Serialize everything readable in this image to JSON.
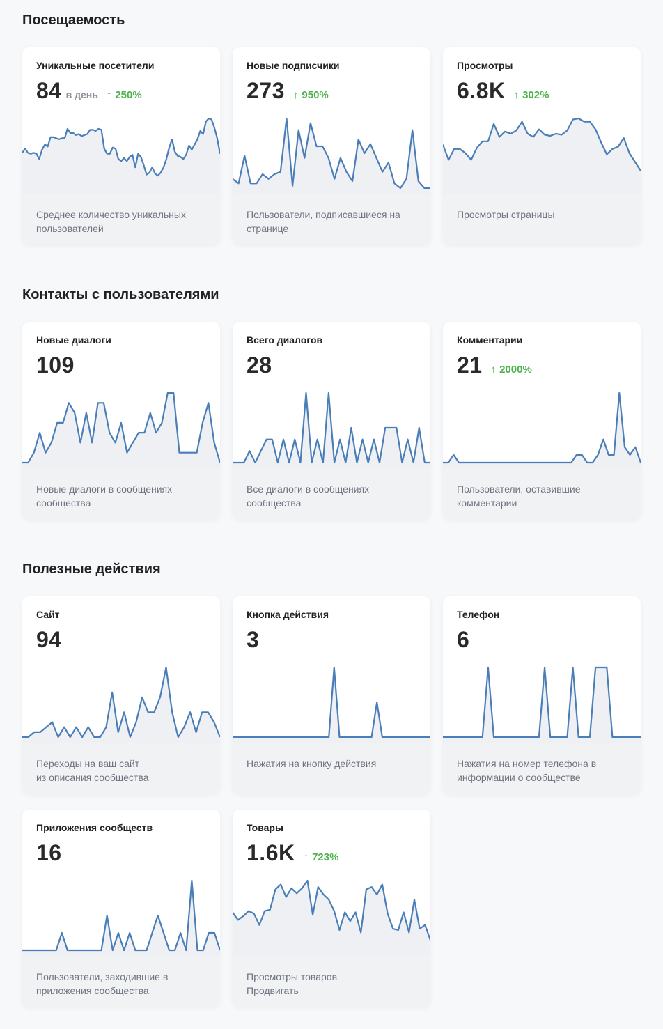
{
  "sections": [
    {
      "title": "Посещаемость",
      "cards": [
        {
          "title": "Уникальные посетители",
          "value": "84",
          "unit": "в день",
          "growth": "250%",
          "desc": [
            "Среднее количество уникальных",
            "пользователей"
          ],
          "series": [
            34,
            38,
            34,
            33,
            34,
            33,
            28,
            37,
            42,
            40,
            49,
            49,
            48,
            47,
            48,
            48,
            57,
            53,
            53,
            51,
            52,
            50,
            51,
            52,
            56,
            56,
            55,
            57,
            56,
            38,
            33,
            33,
            39,
            38,
            28,
            26,
            29,
            26,
            30,
            32,
            20,
            33,
            30,
            22,
            13,
            15,
            20,
            14,
            12,
            15,
            20,
            28,
            39,
            47,
            35,
            31,
            30,
            28,
            32,
            41,
            37,
            42,
            47,
            55,
            52,
            64,
            67,
            66,
            58,
            48,
            33
          ]
        },
        {
          "title": "Новые подписчики",
          "value": "273",
          "growth": "950%",
          "desc": [
            "Пользователи, подписавшиеся на",
            "странице"
          ],
          "series": [
            4,
            2,
            14,
            2,
            2,
            6,
            4,
            6,
            7,
            30,
            1,
            25,
            13,
            28,
            18,
            18,
            13,
            4,
            13,
            7,
            3,
            21,
            15,
            19,
            13,
            7,
            11,
            2,
            0,
            4,
            25,
            3,
            0,
            0
          ]
        },
        {
          "title": "Просмотры",
          "value": "6.8K",
          "growth": "302%",
          "desc": [
            "Просмотры страницы"
          ],
          "series": [
            40,
            26,
            36,
            36,
            32,
            26,
            37,
            43,
            43,
            59,
            47,
            52,
            50,
            53,
            61,
            50,
            47,
            54,
            49,
            48,
            50,
            49,
            53,
            63,
            64,
            61,
            61,
            54,
            42,
            31,
            36,
            38,
            46,
            32,
            24,
            16
          ]
        }
      ]
    },
    {
      "title": "Контакты с пользователями",
      "cards": [
        {
          "title": "Новые диалоги",
          "value": "109",
          "desc": [
            "Новые диалоги в сообщениях",
            "сообщества"
          ],
          "series": [
            0,
            0,
            1,
            3,
            1,
            2,
            4,
            4,
            6,
            5,
            2,
            5,
            2,
            6,
            6,
            3,
            2,
            4,
            1,
            2,
            3,
            3,
            5,
            3,
            4,
            7,
            7,
            1,
            1,
            1,
            1,
            4,
            6,
            2,
            0
          ]
        },
        {
          "title": "Всего диалогов",
          "value": "28",
          "desc": [
            "Все диалоги в сообщениях",
            "сообщества"
          ],
          "series": [
            0,
            0,
            0,
            1,
            0,
            1,
            2,
            2,
            0,
            2,
            0,
            2,
            0,
            6,
            0,
            2,
            0,
            6,
            0,
            2,
            0,
            3,
            0,
            2,
            0,
            2,
            0,
            3,
            3,
            3,
            0,
            2,
            0,
            3,
            0,
            0
          ]
        },
        {
          "title": "Комментарии",
          "value": "21",
          "growth": "2000%",
          "desc": [
            "Пользователи, оставившие",
            "комментарии"
          ],
          "series": [
            0,
            0,
            1,
            0,
            0,
            0,
            0,
            0,
            0,
            0,
            0,
            0,
            0,
            0,
            0,
            0,
            0,
            0,
            0,
            0,
            0,
            0,
            0,
            0,
            0,
            1,
            1,
            0,
            0,
            1,
            3,
            1,
            1,
            9,
            2,
            1,
            2,
            0
          ]
        }
      ]
    },
    {
      "title": "Полезные действия",
      "cards": [
        {
          "title": "Сайт",
          "value": "94",
          "desc": [
            "Переходы на ваш сайт",
            "из описания сообщества"
          ],
          "series": [
            0,
            0,
            1,
            1,
            2,
            3,
            0,
            2,
            0,
            2,
            0,
            2,
            0,
            0,
            2,
            9,
            1,
            5,
            0,
            3,
            8,
            5,
            5,
            8,
            14,
            5,
            0,
            2,
            5,
            1,
            5,
            5,
            3,
            0
          ]
        },
        {
          "title": "Кнопка действия",
          "value": "3",
          "desc": [
            "Нажатия на кнопку действия"
          ],
          "series": [
            0,
            0,
            0,
            0,
            0,
            0,
            0,
            0,
            0,
            0,
            0,
            0,
            0,
            0,
            0,
            0,
            0,
            0,
            0,
            2,
            0,
            0,
            0,
            0,
            0,
            0,
            0,
            1,
            0,
            0,
            0,
            0,
            0,
            0,
            0,
            0,
            0,
            0
          ]
        },
        {
          "title": "Телефон",
          "value": "6",
          "desc": [
            "Нажатия на номер телефона в",
            "информации о сообществе"
          ],
          "series": [
            0,
            0,
            0,
            0,
            0,
            0,
            0,
            0,
            1,
            0,
            0,
            0,
            0,
            0,
            0,
            0,
            0,
            0,
            1,
            0,
            0,
            0,
            0,
            1,
            0,
            0,
            0,
            1,
            1,
            1,
            0,
            0,
            0,
            0,
            0,
            0
          ]
        }
      ]
    },
    {
      "title": "",
      "cards": [
        {
          "title": "Приложения сообществ",
          "value": "16",
          "desc": [
            "Пользователи, заходившие в",
            "приложения сообщества"
          ],
          "series": [
            0,
            0,
            0,
            0,
            0,
            0,
            0,
            1,
            0,
            0,
            0,
            0,
            0,
            0,
            0,
            2,
            0,
            1,
            0,
            1,
            0,
            0,
            0,
            1,
            2,
            1,
            0,
            0,
            1,
            0,
            4,
            0,
            0,
            1,
            1,
            0
          ]
        },
        {
          "title": "Товары",
          "value": "1.6K",
          "growth": "723%",
          "desc": [
            "Просмотры товаров",
            "Продвигать"
          ],
          "series": [
            30,
            24,
            27,
            31,
            29,
            20,
            31,
            32,
            48,
            52,
            42,
            49,
            45,
            49,
            55,
            28,
            50,
            44,
            40,
            31,
            16,
            30,
            23,
            30,
            14,
            48,
            50,
            44,
            52,
            29,
            17,
            16,
            30,
            14,
            40,
            17,
            20,
            8
          ]
        }
      ]
    }
  ],
  "colors": {
    "line": "#4a7eb8",
    "fill": "#eef0f3",
    "growth": "#4bb34b"
  }
}
